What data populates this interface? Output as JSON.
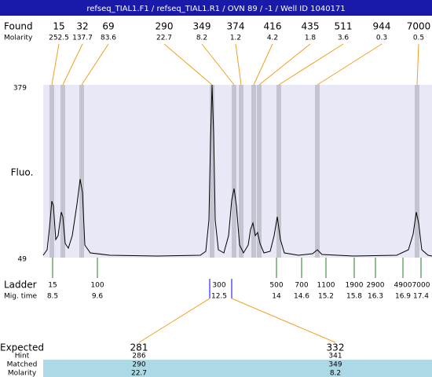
{
  "title": "refseq_TIAL1.F1 / refseq_TIAL1.R1 / OVN 89 / -1 / Well ID 1040171",
  "found": {
    "label": "Found",
    "molarity_label": "Molarity",
    "peaks": [
      {
        "size": 15,
        "molarity": 252.5
      },
      {
        "size": 32,
        "molarity": 137.7
      },
      {
        "size": 69,
        "molarity": 83.6
      },
      {
        "size": 290,
        "molarity": 22.7
      },
      {
        "size": 349,
        "molarity": 8.2
      },
      {
        "size": 374,
        "molarity": 1.2
      },
      {
        "size": 416,
        "molarity": 4.2
      },
      {
        "size": 435,
        "molarity": 1.8
      },
      {
        "size": 511,
        "molarity": 3.6
      },
      {
        "size": 944,
        "molarity": 0.3
      },
      {
        "size": 7000,
        "molarity": 0.5
      }
    ]
  },
  "axis": {
    "label": "Fluo.",
    "top": 379,
    "bottom": 49
  },
  "ladder": {
    "label": "Ladder",
    "time_label": "Mig. time",
    "entries": [
      {
        "size": 15,
        "time": 8.5
      },
      {
        "size": 100,
        "time": 9.6
      },
      {
        "size": 300,
        "time": 12.5
      },
      {
        "size": 500,
        "time": 14
      },
      {
        "size": 700,
        "time": 14.6
      },
      {
        "size": 1100,
        "time": 15.2
      },
      {
        "size": 1900,
        "time": 15.8
      },
      {
        "size": 2900,
        "time": 16.3
      },
      {
        "size": 4900,
        "time": 16.9
      },
      {
        "size": 7000,
        "time": 17.4
      }
    ]
  },
  "expected": {
    "labels": [
      "Expected",
      "Hint",
      "Matched",
      "Molarity"
    ],
    "columns": [
      {
        "expected": 281,
        "hint": 286,
        "matched": 290,
        "molarity": 22.7
      },
      {
        "expected": 332,
        "hint": 341,
        "matched": 349,
        "molarity": 8.2
      }
    ]
  }
}
